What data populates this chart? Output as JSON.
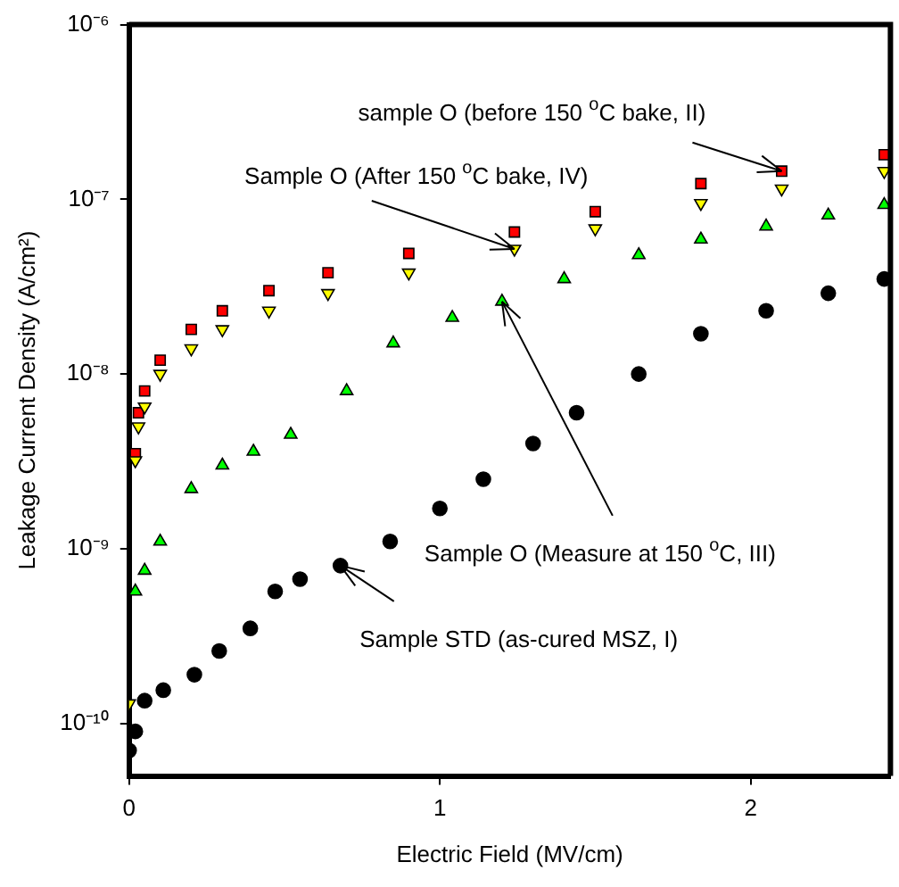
{
  "chart_data": {
    "type": "scatter",
    "xlabel": "Electric Field (MV/cm)",
    "ylabel": "Leakage Current Density (A/cm²)",
    "log": "y",
    "grid": false,
    "legend": false,
    "xlim": [
      0,
      2.45
    ],
    "xticks": [
      0,
      1,
      2
    ],
    "ylim": [
      5e-11,
      1e-06
    ],
    "yticks": [
      {
        "value": 1e-10,
        "label": "10⁻¹⁰"
      },
      {
        "value": 1e-09,
        "label": "10⁻⁹"
      },
      {
        "value": 1e-08,
        "label": "10⁻⁸"
      },
      {
        "value": 1e-07,
        "label": "10⁻⁷"
      },
      {
        "value": 1e-06,
        "label": "10⁻⁶"
      }
    ],
    "series": [
      {
        "color": "#000000",
        "marker": "circle",
        "x": [
          0,
          0.02,
          0.05,
          0.11,
          0.21,
          0.29,
          0.39,
          0.47,
          0.55,
          0.68,
          0.84,
          1.0,
          1.14,
          1.3,
          1.44,
          1.64,
          1.84,
          2.05,
          2.25,
          2.43
        ],
        "values": [
          7e-11,
          9e-11,
          1.35e-10,
          1.55e-10,
          1.9e-10,
          2.6e-10,
          3.5e-10,
          5.7e-10,
          6.7e-10,
          8e-10,
          1.1e-09,
          1.7e-09,
          2.5e-09,
          4e-09,
          6e-09,
          1e-08,
          1.7e-08,
          2.3e-08,
          2.9e-08,
          3.5e-08
        ]
      },
      {
        "color": "#00ff00",
        "marker": "triangle",
        "x": [
          0.02,
          0.05,
          0.1,
          0.2,
          0.3,
          0.4,
          0.52,
          0.7,
          0.85,
          1.04,
          1.2,
          1.4,
          1.64,
          1.84,
          2.05,
          2.25,
          2.43
        ],
        "values": [
          5.7e-10,
          7.5e-10,
          1.1e-09,
          2.2e-09,
          3e-09,
          3.6e-09,
          4.5e-09,
          8e-09,
          1.5e-08,
          2.1e-08,
          2.6e-08,
          3.5e-08,
          4.8e-08,
          5.9e-08,
          7e-08,
          8.1e-08,
          9.3e-08
        ]
      },
      {
        "color": "#ffff00",
        "marker": "triangle_down",
        "x": [
          0,
          0.02,
          0.03,
          0.05,
          0.1,
          0.2,
          0.3,
          0.45,
          0.64,
          0.9,
          1.24,
          1.5,
          1.84,
          2.1,
          2.43
        ],
        "values": [
          1.3e-10,
          3.2e-09,
          5e-09,
          6.5e-09,
          1e-08,
          1.4e-08,
          1.8e-08,
          2.3e-08,
          2.9e-08,
          3.8e-08,
          5.2e-08,
          6.8e-08,
          9.5e-08,
          1.15e-07,
          1.45e-07
        ]
      },
      {
        "color": "#ff0000",
        "marker": "square",
        "x": [
          0.02,
          0.03,
          0.05,
          0.1,
          0.2,
          0.3,
          0.45,
          0.64,
          0.9,
          1.24,
          1.5,
          1.84,
          2.1,
          2.43
        ],
        "values": [
          3.5e-09,
          6e-09,
          8e-09,
          1.2e-08,
          1.8e-08,
          2.3e-08,
          3e-08,
          3.8e-08,
          4.9e-08,
          6.5e-08,
          8.5e-08,
          1.23e-07,
          1.45e-07,
          1.8e-07
        ]
      }
    ],
    "annotations": [
      {
        "text": "sample O (before 150 $^{o}$C bake, II)",
        "x": 2.1,
        "y": 1.45e-07
      },
      {
        "text": "Sample O (After 150 $^{o}$C bake, IV)",
        "x": 1.24,
        "y": 5.2e-08
      },
      {
        "text": "Sample O (Measure at 150 $^{o}$C, III)",
        "x": 1.2,
        "y": 2.6e-08
      },
      {
        "text": "Sample STD (as-cured MSZ, I)",
        "x": 0.68,
        "y": 8e-10
      }
    ]
  }
}
